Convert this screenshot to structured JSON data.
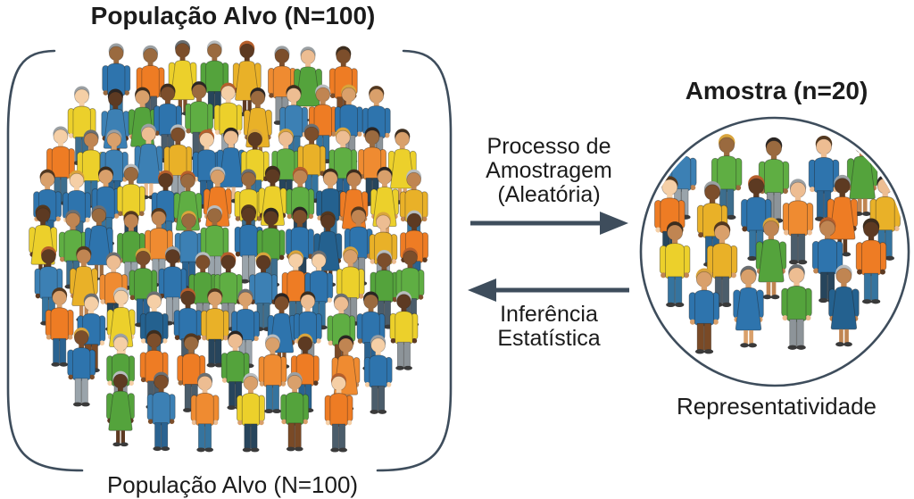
{
  "figure": {
    "population": {
      "title": "População Alvo (N=100)",
      "caption": "População Alvo (N=100)",
      "count": 100
    },
    "sample": {
      "title": "Amostra (n=20)",
      "caption": "Representatividade",
      "count": 20
    },
    "process_arrow": {
      "direction": "right",
      "label_lines": [
        "Processo de",
        "Amostragem",
        "(Aleatória)"
      ]
    },
    "inference_arrow": {
      "direction": "left",
      "label_lines": [
        "Inferência",
        "Estatística"
      ]
    }
  },
  "colors": {
    "background": "#ffffff",
    "text": "#1b1b1b",
    "outline": "#3e4d5c",
    "shoe": "#3a3a3a",
    "shirt_palette": [
      "#2e74ad",
      "#2e74ad",
      "#3c80b4",
      "#24618f",
      "#2e74ad",
      "#ee7c24",
      "#ee7c24",
      "#ef8b31",
      "#54a33c",
      "#54a33c",
      "#5fae43",
      "#ecd02b",
      "#ecd02b",
      "#e9b128"
    ],
    "pants_palette": [
      "#2a6391",
      "#35749f",
      "#3d6e8e",
      "#4b5d6b",
      "#8d9499",
      "#7a4a26",
      "#27455c",
      "#9aa4ab"
    ],
    "skin_palette": [
      "#f5cfa6",
      "#edbd92",
      "#d9a06b",
      "#c08552",
      "#9a6a3f",
      "#7c4e2b",
      "#5d3a22"
    ],
    "hair_palette": [
      "#2a2523",
      "#3c2d1e",
      "#53381f",
      "#b9bdbf",
      "#9ba0a3",
      "#d9a43c",
      "#b65f2c",
      "#6b6f72"
    ]
  },
  "seed": 20100
}
